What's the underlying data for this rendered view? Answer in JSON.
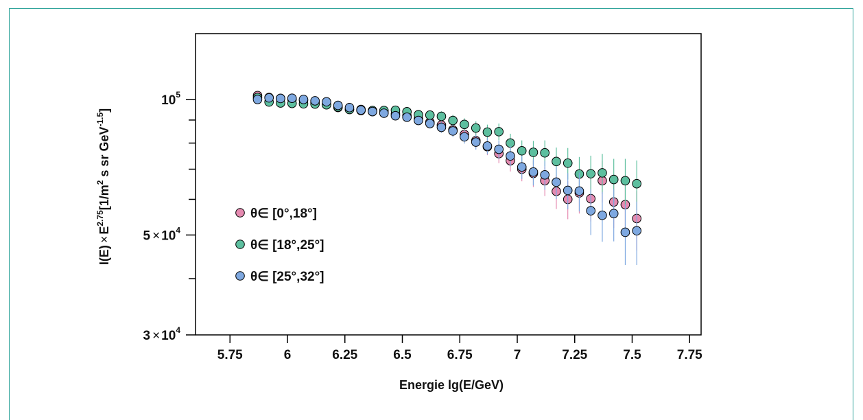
{
  "chart_data": {
    "type": "scatter",
    "xlabel": "Energie lg(E/GeV)",
    "ylabel_parts": {
      "a": "I(E)",
      "times": "×",
      "e": "E",
      "e_exp": "2.75",
      "b": "[1/m",
      "m_exp": "2",
      "c": " s sr GeV",
      "gev_exp": "-1.5",
      "d": "]"
    },
    "xlim": [
      5.6,
      7.8
    ],
    "ylim": [
      30000,
      140000
    ],
    "log_y": true,
    "grid": false,
    "legend_position": "left-center",
    "xticks": [
      {
        "value": 5.75,
        "label": "5.75"
      },
      {
        "value": 6.0,
        "label": "6"
      },
      {
        "value": 6.25,
        "label": "6.25"
      },
      {
        "value": 6.5,
        "label": "6.5"
      },
      {
        "value": 6.75,
        "label": "6.75"
      },
      {
        "value": 7.0,
        "label": "7"
      },
      {
        "value": 7.25,
        "label": "7.25"
      },
      {
        "value": 7.5,
        "label": "7.5"
      },
      {
        "value": 7.75,
        "label": "7.75"
      }
    ],
    "yticks_major": [
      {
        "value": 100000,
        "mant": "",
        "times": "",
        "base": "10",
        "exp": "5"
      },
      {
        "value": 50000,
        "mant": "5",
        "times": "×",
        "base": "10",
        "exp": "4"
      },
      {
        "value": 30000,
        "mant": "3",
        "times": "×",
        "base": "10",
        "exp": "4"
      }
    ],
    "yticks_minor": [
      90000,
      80000,
      70000,
      60000,
      40000
    ],
    "series": [
      {
        "name": "θ∈ [0°,18°]",
        "color": "#e58ab0",
        "x": [
          5.87,
          5.92,
          5.97,
          6.02,
          6.07,
          6.12,
          6.17,
          6.22,
          6.27,
          6.32,
          6.37,
          6.42,
          6.47,
          6.52,
          6.57,
          6.62,
          6.67,
          6.72,
          6.77,
          6.82,
          6.87,
          6.92,
          6.97,
          7.02,
          7.07,
          7.12,
          7.17,
          7.22,
          7.27,
          7.32,
          7.37,
          7.42,
          7.47,
          7.52
        ],
        "y": [
          102000,
          101000,
          100500,
          100000,
          99500,
          98500,
          97500,
          96000,
          95000,
          94500,
          94000,
          93500,
          92800,
          92000,
          90500,
          89000,
          87700,
          85600,
          83600,
          81000,
          78500,
          75800,
          73100,
          70000,
          68500,
          66000,
          62500,
          60000,
          62000,
          60200,
          66000,
          59200,
          58400,
          54400
        ],
        "err": [
          1200,
          1200,
          1200,
          1200,
          1300,
          1300,
          1400,
          1400,
          1500,
          1500,
          1600,
          1700,
          1800,
          1900,
          2000,
          2200,
          2400,
          2600,
          2800,
          3000,
          3300,
          3600,
          3900,
          4200,
          4600,
          5000,
          5400,
          5800,
          6200,
          6600,
          7000,
          7400,
          7800,
          8200
        ]
      },
      {
        "name": "θ∈ [18°,25°]",
        "color": "#5dbf9f",
        "x": [
          5.87,
          5.92,
          5.97,
          6.02,
          6.07,
          6.12,
          6.17,
          6.22,
          6.27,
          6.32,
          6.37,
          6.42,
          6.47,
          6.52,
          6.57,
          6.62,
          6.67,
          6.72,
          6.77,
          6.82,
          6.87,
          6.92,
          6.97,
          7.02,
          7.07,
          7.12,
          7.17,
          7.22,
          7.27,
          7.32,
          7.37,
          7.42,
          7.47,
          7.52
        ],
        "y": [
          101000,
          98700,
          98200,
          98000,
          97800,
          97700,
          97300,
          96200,
          95000,
          95000,
          94500,
          94500,
          94600,
          93900,
          92500,
          92300,
          91700,
          89800,
          88000,
          86400,
          84600,
          84800,
          80000,
          76900,
          76300,
          76100,
          72800,
          72200,
          68300,
          68400,
          68700,
          66400,
          66000,
          65000
        ],
        "err": [
          1200,
          1200,
          1200,
          1200,
          1300,
          1300,
          1400,
          1400,
          1500,
          1500,
          1600,
          1700,
          1800,
          1900,
          2000,
          2200,
          2400,
          2600,
          2800,
          3000,
          3300,
          3600,
          3900,
          4200,
          4600,
          5000,
          5400,
          5800,
          6200,
          6600,
          7000,
          7400,
          7800,
          8200
        ]
      },
      {
        "name": "θ∈ [25°,32°]",
        "color": "#7ea8e0",
        "x": [
          5.87,
          5.92,
          5.97,
          6.02,
          6.07,
          6.12,
          6.17,
          6.22,
          6.27,
          6.32,
          6.37,
          6.42,
          6.47,
          6.52,
          6.57,
          6.62,
          6.67,
          6.72,
          6.77,
          6.82,
          6.87,
          6.92,
          6.97,
          7.02,
          7.07,
          7.12,
          7.17,
          7.22,
          7.27,
          7.32,
          7.37,
          7.42,
          7.47,
          7.52
        ],
        "y": [
          100000,
          100800,
          100500,
          100600,
          100000,
          99300,
          98800,
          97000,
          95900,
          94700,
          94000,
          93200,
          92000,
          91300,
          89800,
          88400,
          86700,
          85100,
          82600,
          80400,
          78800,
          77500,
          74900,
          70800,
          69000,
          68000,
          65500,
          62800,
          62600,
          56600,
          55300,
          55800,
          50700,
          51100
        ],
        "err": [
          1200,
          1200,
          1200,
          1200,
          1300,
          1300,
          1400,
          1400,
          1500,
          1500,
          1600,
          1700,
          1800,
          1900,
          2000,
          2200,
          2400,
          2600,
          2800,
          3000,
          3300,
          3600,
          3900,
          4200,
          4600,
          5000,
          5400,
          5800,
          6200,
          6600,
          7000,
          7400,
          7800,
          8200
        ]
      }
    ]
  }
}
